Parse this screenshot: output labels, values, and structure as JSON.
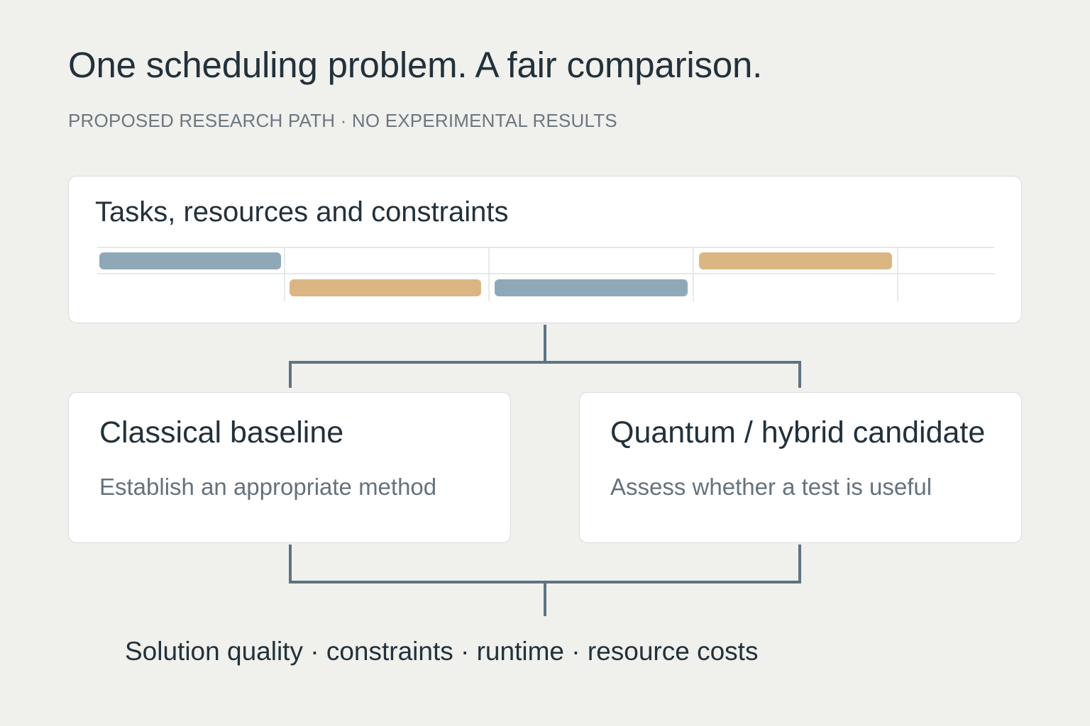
{
  "header": {
    "title": "One scheduling problem. A fair comparison.",
    "subtitle": "PROPOSED RESEARCH PATH · NO EXPERIMENTAL RESULTS"
  },
  "problem_card": {
    "title": "Tasks, resources and constraints",
    "schedule_colors": {
      "slate": "#8fa8b8",
      "sand": "#dcb682"
    }
  },
  "approaches": [
    {
      "heading": "Classical baseline",
      "description": "Establish an appropriate method"
    },
    {
      "heading": "Quantum / hybrid candidate",
      "description": "Assess whether a test is useful"
    }
  ],
  "metrics": {
    "text": "Solution quality · constraints · runtime · resource costs"
  },
  "colors": {
    "background": "#f0f0ec",
    "connector": "#5f7381",
    "text_dark": "#22313b",
    "text_muted": "#65727c"
  }
}
